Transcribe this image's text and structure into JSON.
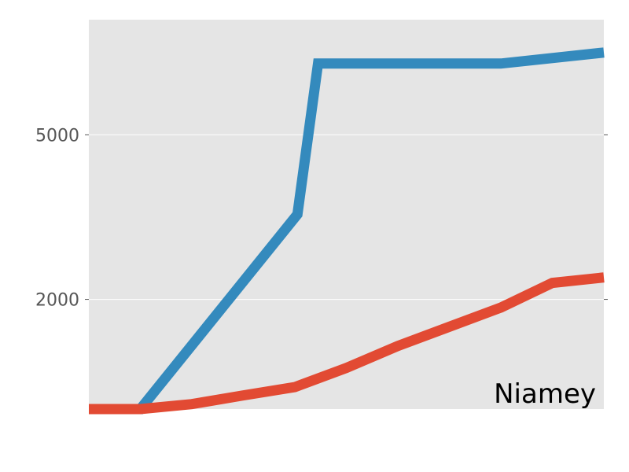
{
  "chart_data": {
    "type": "line",
    "title": "",
    "xlabel": "",
    "ylabel": "",
    "annotation": "Niamey",
    "xlim": [
      0,
      100
    ],
    "ylim": [
      0,
      7100
    ],
    "y_ticks": [
      2000,
      5000
    ],
    "y_tick_labels": [
      "2000",
      "5000"
    ],
    "grid": true,
    "series": [
      {
        "color": "#348ABD",
        "x": [
          0,
          10,
          40.5,
          44.5,
          80,
          100
        ],
        "y": [
          0,
          0,
          3550,
          6300,
          6300,
          6500
        ]
      },
      {
        "color": "#E24A33",
        "x": [
          0,
          10,
          20,
          30,
          40,
          50,
          60,
          70,
          80,
          90,
          100
        ],
        "y": [
          0,
          0,
          90,
          250,
          400,
          750,
          1150,
          1500,
          1850,
          2300,
          2400
        ]
      }
    ]
  },
  "colors": {
    "plot_background": "#E5E5E5",
    "grid": "#FFFFFF",
    "tick_label": "#555555"
  }
}
